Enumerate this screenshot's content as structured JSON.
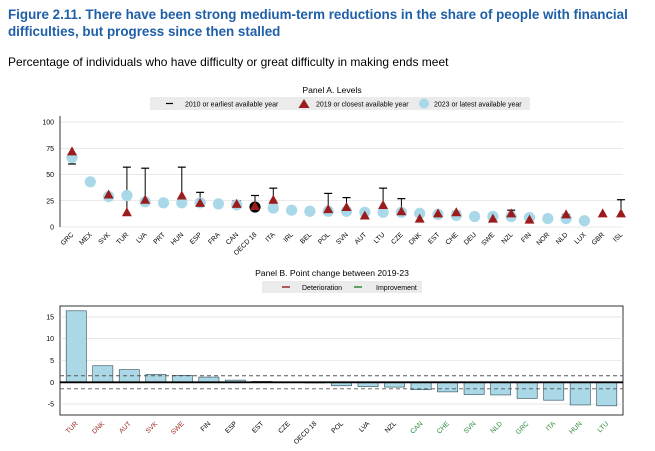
{
  "figure": {
    "title": "Figure 2.11. There have been strong medium-term reductions in the share of people with financial difficulties, but progress since then stalled",
    "subtitle": "Percentage of individuals who have difficulty or great difficulty in making ends meet"
  },
  "colors": {
    "bubble": "#a9d8e8",
    "bubble_dark": "#000000",
    "triangle": "#9b1c1c",
    "whisker": "#000000",
    "bar_fill": "#aad8e6",
    "deterioration": "#9b2a22",
    "improvement": "#2e8b3a",
    "neutral_label": "#000000"
  },
  "chart_data": [
    {
      "type": "scatter",
      "title": "Panel A. Levels",
      "legend": [
        "2010 or earliest available year",
        "2019 or closest available year",
        "2023 or latest available year"
      ],
      "legend_position": "top",
      "ylim": [
        0,
        100
      ],
      "yticks": [
        0,
        25,
        50,
        75,
        100
      ],
      "categories": [
        "GRC",
        "MEX",
        "SVK",
        "TUR",
        "LVA",
        "PRT",
        "HUN",
        "ESP",
        "FRA",
        "CAN",
        "OECD 18",
        "ITA",
        "IRL",
        "BEL",
        "POL",
        "SVN",
        "AUT",
        "LTU",
        "CZE",
        "DNK",
        "EST",
        "CHE",
        "DEU",
        "SWE",
        "NZL",
        "FIN",
        "NOR",
        "NLD",
        "LUX",
        "GBR",
        "ISL"
      ],
      "highlight_category": "OECD 18",
      "series": [
        {
          "name": "2010 or earliest available year",
          "values": [
            60,
            null,
            31,
            57,
            56,
            null,
            57,
            33,
            null,
            25,
            30,
            37,
            null,
            null,
            32,
            28,
            15,
            37,
            27,
            12,
            14,
            15,
            null,
            11,
            16,
            10,
            null,
            12,
            null,
            null,
            26
          ]
        },
        {
          "name": "2019 or closest available year",
          "values": [
            72,
            null,
            31,
            14,
            26,
            null,
            30,
            23,
            null,
            22,
            20,
            26,
            null,
            null,
            17,
            19,
            11,
            21,
            15,
            8,
            13,
            14,
            null,
            8,
            13,
            7,
            null,
            12,
            null,
            13,
            13
          ]
        },
        {
          "name": "2023 or latest available year",
          "values": [
            66,
            43,
            29,
            30,
            24,
            23,
            23,
            23,
            22,
            21,
            19,
            18,
            16,
            15,
            15,
            15,
            14,
            14,
            14,
            13,
            12,
            11,
            10,
            10,
            10,
            9,
            8,
            8,
            6,
            null,
            null
          ]
        }
      ]
    },
    {
      "type": "bar",
      "title": "Panel B. Point change between 2019-23",
      "legend": [
        "Deterioration",
        "Improvement"
      ],
      "legend_position": "top",
      "ylim": [
        -7.5,
        17.5
      ],
      "yticks": [
        -5,
        0,
        5,
        10,
        15
      ],
      "reference_lines": [
        1.5,
        -1.5
      ],
      "categories": [
        "TUR",
        "DNK",
        "AUT",
        "SVK",
        "SWE",
        "FIN",
        "ESP",
        "EST",
        "CZE",
        "OECD 18",
        "POL",
        "LVA",
        "NZL",
        "CAN",
        "CHE",
        "SVN",
        "NLD",
        "GRC",
        "ITA",
        "HUN",
        "LTU"
      ],
      "values": [
        16.4,
        3.8,
        2.9,
        1.8,
        1.6,
        1.2,
        0.5,
        0.2,
        0.1,
        -0.1,
        -0.8,
        -1.0,
        -1.1,
        -1.7,
        -2.2,
        -2.8,
        -2.9,
        -3.7,
        -4.1,
        -5.2,
        -5.4
      ],
      "label_status": [
        "deterioration",
        "deterioration",
        "deterioration",
        "deterioration",
        "deterioration",
        "neutral",
        "neutral",
        "neutral",
        "neutral",
        "neutral",
        "neutral",
        "neutral",
        "neutral",
        "improvement",
        "improvement",
        "improvement",
        "improvement",
        "improvement",
        "improvement",
        "improvement",
        "improvement"
      ]
    }
  ]
}
